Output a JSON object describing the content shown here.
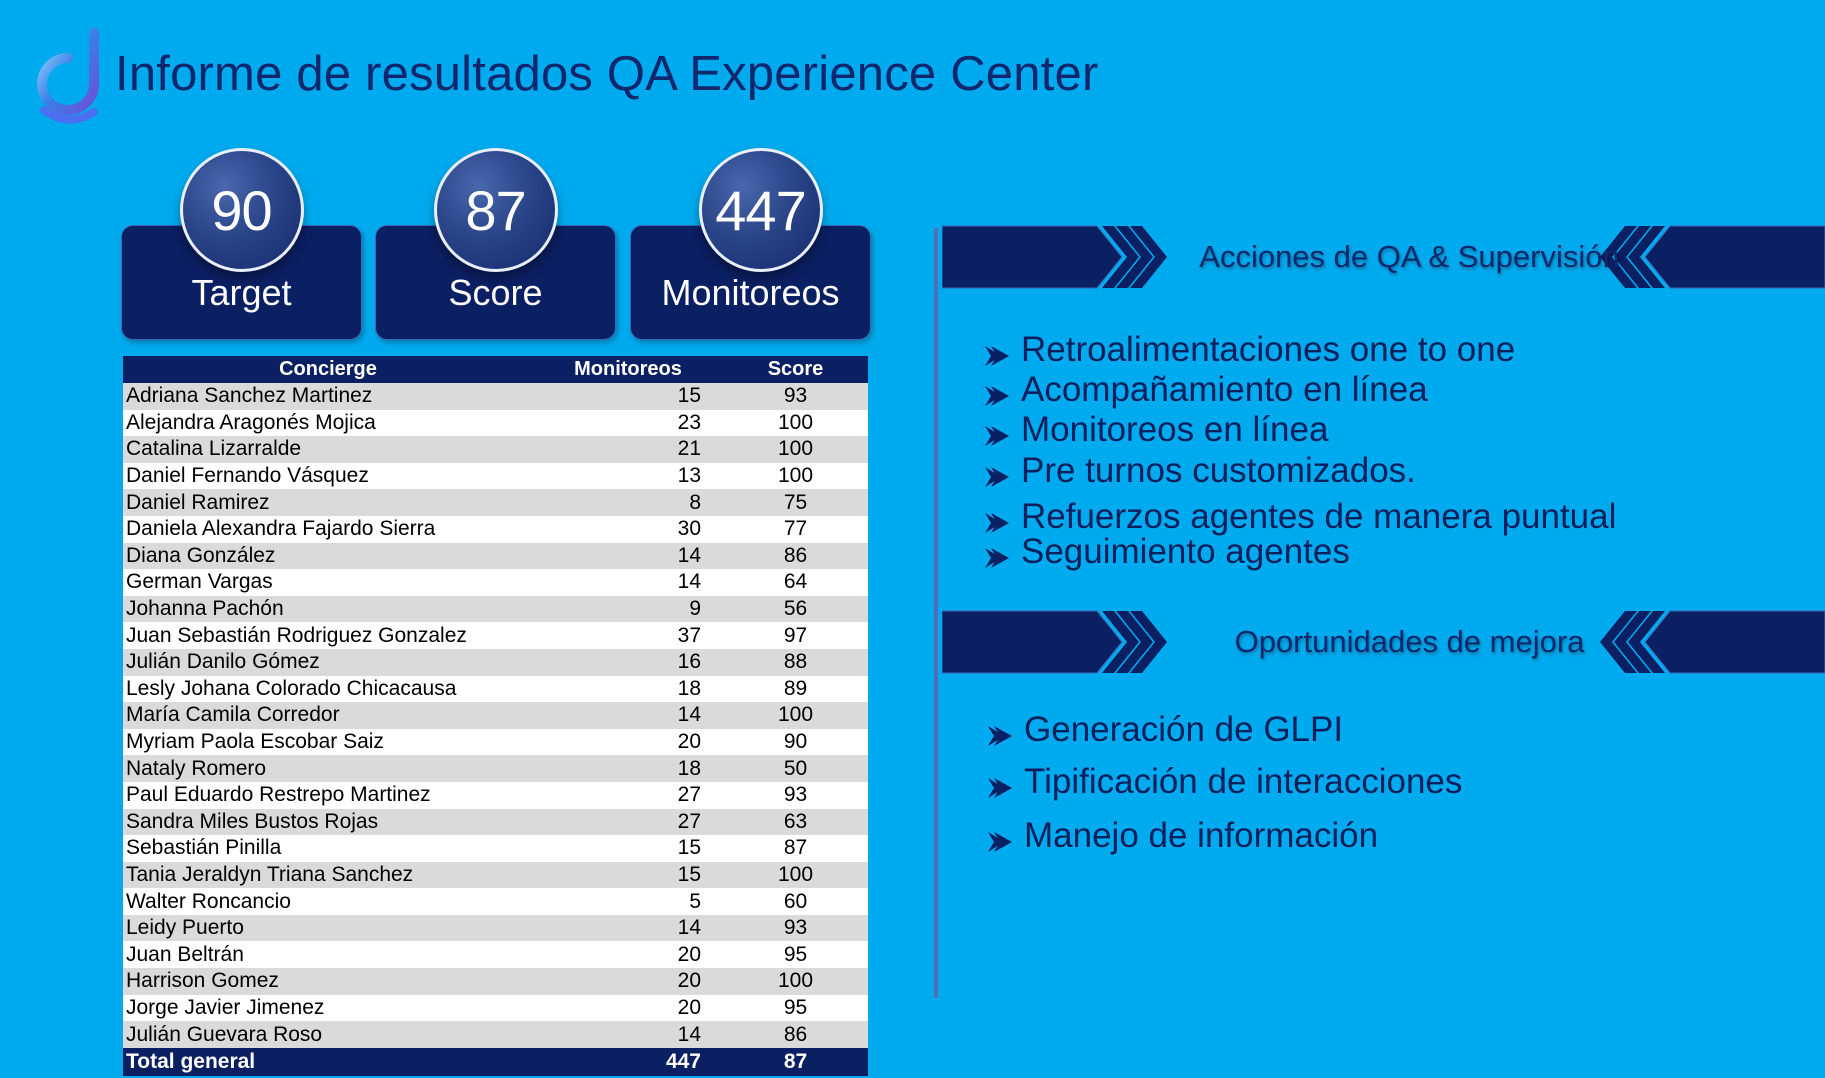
{
  "title": "Informe de resultados QA Experience Center",
  "kpis": [
    {
      "value": "90",
      "label": "Target"
    },
    {
      "value": "87",
      "label": "Score"
    },
    {
      "value": "447",
      "label": "Monitoreos"
    }
  ],
  "table": {
    "headers": [
      "Concierge",
      "Monitoreos",
      "Score"
    ],
    "rows": [
      [
        "Adriana Sanchez Martinez",
        "15",
        "93"
      ],
      [
        "Alejandra Aragonés Mojica",
        "23",
        "100"
      ],
      [
        "Catalina Lizarralde",
        "21",
        "100"
      ],
      [
        "Daniel Fernando Vásquez",
        "13",
        "100"
      ],
      [
        "Daniel Ramirez",
        "8",
        "75"
      ],
      [
        "Daniela Alexandra Fajardo Sierra",
        "30",
        "77"
      ],
      [
        "Diana González",
        "14",
        "86"
      ],
      [
        "German Vargas",
        "14",
        "64"
      ],
      [
        "Johanna Pachón",
        "9",
        "56"
      ],
      [
        "Juan Sebastián Rodriguez Gonzalez",
        "37",
        "97"
      ],
      [
        "Julián Danilo Gómez",
        "16",
        "88"
      ],
      [
        "Lesly Johana Colorado Chicacausa",
        "18",
        "89"
      ],
      [
        "María Camila Corredor",
        "14",
        "100"
      ],
      [
        "Myriam Paola Escobar Saiz",
        "20",
        "90"
      ],
      [
        "Nataly Romero",
        "18",
        "50"
      ],
      [
        "Paul Eduardo Restrepo Martinez",
        "27",
        "93"
      ],
      [
        "Sandra Miles Bustos Rojas",
        "27",
        "63"
      ],
      [
        "Sebastián Pinilla",
        "15",
        "87"
      ],
      [
        "Tania Jeraldyn Triana Sanchez",
        "15",
        "100"
      ],
      [
        "Walter Roncancio",
        "5",
        "60"
      ],
      [
        "Leidy Puerto",
        "14",
        "93"
      ],
      [
        "Juan Beltrán",
        "20",
        "95"
      ],
      [
        "Harrison Gomez",
        "20",
        "100"
      ],
      [
        "Jorge Javier Jimenez",
        "20",
        "95"
      ],
      [
        "Julián Guevara Roso",
        "14",
        "86"
      ]
    ],
    "total": [
      "Total general",
      "447",
      "87"
    ]
  },
  "section1": {
    "title": "Acciones de QA & Supervisión",
    "items": [
      "Retroalimentaciones one to one",
      "Acompañamiento en línea",
      "Monitoreos en línea",
      "Pre turnos customizados.",
      "Refuerzos agentes de manera puntual",
      "Seguimiento agentes"
    ]
  },
  "section2": {
    "title": "Oportunidades de mejora",
    "items": [
      "Generación de GLPI",
      "Tipificación de interacciones",
      "Manejo de información"
    ]
  },
  "colors": {
    "background": "#00aaee",
    "navy": "#0b1f63",
    "title_text": "#10276e",
    "row_alt": "#dadada"
  }
}
